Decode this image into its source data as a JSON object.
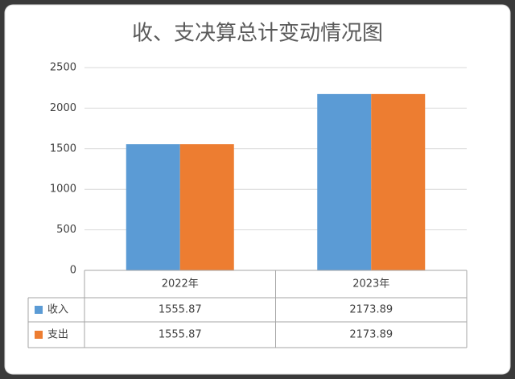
{
  "chart_data": {
    "type": "bar",
    "title": "收、支决算总计变动情况图",
    "categories": [
      "2022年",
      "2023年"
    ],
    "series": [
      {
        "name": "收入",
        "color": "#5b9bd5",
        "values": [
          1555.87,
          2173.89
        ]
      },
      {
        "name": "支出",
        "color": "#ed7d31",
        "values": [
          1555.87,
          2173.89
        ]
      }
    ],
    "ylim": [
      0,
      2500
    ],
    "yticks": [
      0,
      500,
      1000,
      1500,
      2000,
      2500
    ],
    "grid": true,
    "data_table": true
  }
}
